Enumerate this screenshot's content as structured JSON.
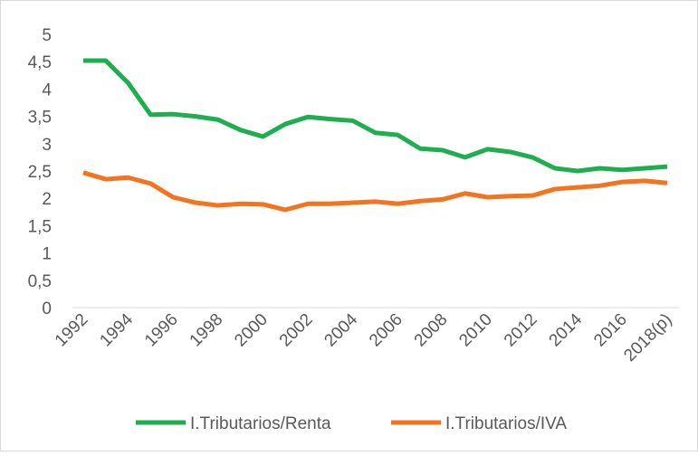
{
  "chart_data": {
    "type": "line",
    "categories": [
      "1992",
      null,
      "1994",
      null,
      "1996",
      null,
      "1998",
      null,
      "2000",
      null,
      "2002",
      null,
      "2004",
      null,
      "2006",
      null,
      "2008",
      null,
      "2010",
      null,
      "2012",
      null,
      "2014",
      null,
      "2016",
      null,
      "2018(p)"
    ],
    "series": [
      {
        "name": "I.Tributarios/Renta",
        "color": "#1fae4f",
        "values": [
          4.52,
          4.52,
          4.11,
          3.53,
          3.54,
          3.5,
          3.44,
          3.25,
          3.13,
          3.36,
          3.49,
          3.45,
          3.42,
          3.2,
          3.16,
          2.91,
          2.88,
          2.75,
          2.9,
          2.85,
          2.75,
          2.55,
          2.5,
          2.55,
          2.52,
          2.55,
          2.58
        ]
      },
      {
        "name": "I.Tributarios/IVA",
        "color": "#f4731f",
        "values": [
          2.47,
          2.35,
          2.38,
          2.27,
          2.02,
          1.92,
          1.87,
          1.9,
          1.89,
          1.79,
          1.9,
          1.9,
          1.92,
          1.94,
          1.9,
          1.95,
          1.98,
          2.09,
          2.02,
          2.04,
          2.05,
          2.17,
          2.2,
          2.23,
          2.3,
          2.32,
          2.28
        ]
      }
    ],
    "ylim": [
      0,
      5
    ],
    "yticks": [
      0,
      {
        "value": 0.5,
        "label": "0,5"
      },
      1,
      {
        "value": 1.5,
        "label": "1,5"
      },
      2,
      {
        "value": 2.5,
        "label": "2,5"
      },
      3,
      {
        "value": 3.5,
        "label": "3,5"
      },
      4,
      {
        "value": 4.5,
        "label": "4,5"
      },
      5
    ],
    "grid": false,
    "legend": "bottom"
  }
}
